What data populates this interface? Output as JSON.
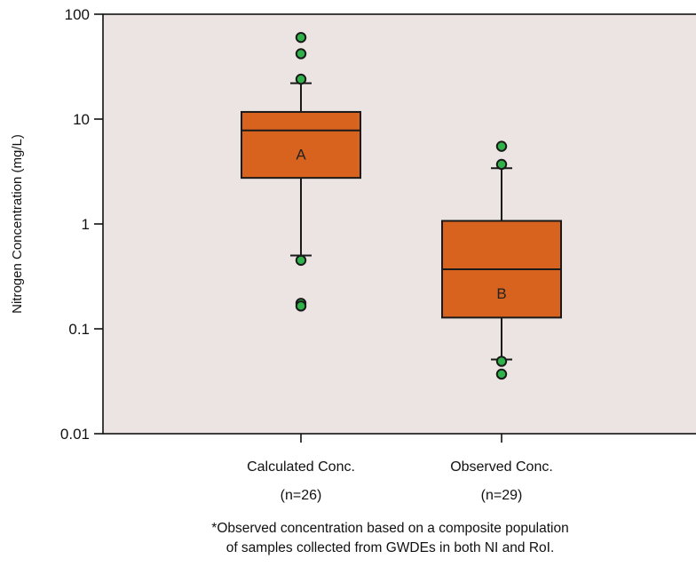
{
  "chart_data": {
    "type": "box",
    "ylabel": "Nitrogen Concentration (mg/L)",
    "yscale": "log",
    "ylim": [
      0.01,
      100
    ],
    "yticks": [
      {
        "value": 0.01,
        "label": "0.01"
      },
      {
        "value": 0.1,
        "label": "0.1"
      },
      {
        "value": 1,
        "label": "1"
      },
      {
        "value": 10,
        "label": "10"
      },
      {
        "value": 100,
        "label": "100"
      }
    ],
    "categories": [
      {
        "name": "Calculated Conc.",
        "n_label": "(n=26)"
      },
      {
        "name": "Observed Conc.",
        "n_label": "(n=29)"
      }
    ],
    "boxes": [
      {
        "letter": "A",
        "whisker_low": 0.5,
        "q1": 2.75,
        "median": 7.8,
        "q3": 11.7,
        "whisker_high": 22,
        "outliers": [
          60,
          42,
          24,
          0.45,
          0.175,
          0.165
        ]
      },
      {
        "letter": "B",
        "whisker_low": 0.051,
        "q1": 0.128,
        "median": 0.37,
        "q3": 1.07,
        "whisker_high": 3.4,
        "outliers": [
          5.5,
          3.7,
          0.049,
          0.037
        ]
      }
    ],
    "footnote": [
      "*Observed concentration based on a composite population",
      "of samples collected from GWDEs in both NI and RoI."
    ],
    "colors": {
      "plot_bg": "#ebe4e3",
      "box_fill": "#d7631f",
      "box_stroke": "#1a1a1a",
      "outlier_fill": "#2fb24a",
      "outlier_stroke": "#1a1a1a"
    }
  }
}
